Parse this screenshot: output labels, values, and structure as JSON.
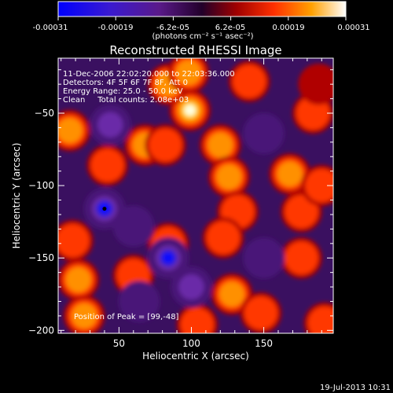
{
  "colorbar": {
    "tick_labels": [
      "-0.00031",
      "-0.00019",
      "-6.2e-05",
      "6.2e-05",
      "0.00019",
      "0.00031"
    ],
    "unit_label": "(photons cm⁻² s⁻¹ asec⁻²)",
    "range": [
      -0.00031,
      0.00031
    ]
  },
  "chart_data": {
    "type": "heatmap",
    "title": "Reconstructed RHESSI Image",
    "xlabel": "Heliocentric X (arcsec)",
    "ylabel": "Heliocentric Y (arcsec)",
    "xlim": [
      8,
      198
    ],
    "ylim": [
      -202,
      -12
    ],
    "x_ticks": [
      50,
      100,
      150
    ],
    "x_tick_labels": [
      "50",
      "100",
      "150"
    ],
    "y_ticks": [
      -50,
      -100,
      -150,
      -200
    ],
    "y_tick_labels": [
      "−50",
      "−100",
      "−150",
      "−200"
    ],
    "annotations": [
      "11-Dec-2006 22:02:20.000 to 22:03:36.000",
      "Detectors: 4F 5F 6F 7F 8F, Att 0",
      "Energy Range: 25.0 - 50.0 keV",
      "Clean     Total counts: 2.08e+03"
    ],
    "peak_label": "Position of Peak = [99,-48]",
    "peak_position": [
      99,
      -48
    ],
    "colormap": "rainbow-thermal",
    "sources": [
      {
        "x": 99,
        "y": -48,
        "value": 0.00031
      },
      {
        "x": 84,
        "y": -30,
        "value": 0.00022
      },
      {
        "x": 98,
        "y": -22,
        "value": 0.0002
      },
      {
        "x": 16,
        "y": -62,
        "value": 0.0002
      },
      {
        "x": 68,
        "y": -72,
        "value": 0.00018
      },
      {
        "x": 82,
        "y": -72,
        "value": 0.00016
      },
      {
        "x": 42,
        "y": -86,
        "value": 0.00015
      },
      {
        "x": 140,
        "y": -28,
        "value": 0.00014
      },
      {
        "x": 120,
        "y": -72,
        "value": 0.00019
      },
      {
        "x": 126,
        "y": -94,
        "value": 0.00018
      },
      {
        "x": 132,
        "y": -118,
        "value": 0.00016
      },
      {
        "x": 122,
        "y": -136,
        "value": 0.00012
      },
      {
        "x": 168,
        "y": -92,
        "value": 0.00018
      },
      {
        "x": 176,
        "y": -118,
        "value": 0.00017
      },
      {
        "x": 190,
        "y": -100,
        "value": 0.00014
      },
      {
        "x": 184,
        "y": -50,
        "value": 0.00012
      },
      {
        "x": 188,
        "y": -30,
        "value": 0.0001
      },
      {
        "x": 18,
        "y": -138,
        "value": 0.00017
      },
      {
        "x": 22,
        "y": -165,
        "value": 0.0002
      },
      {
        "x": 26,
        "y": -190,
        "value": 0.00018
      },
      {
        "x": 60,
        "y": -162,
        "value": 0.00017
      },
      {
        "x": 84,
        "y": -140,
        "value": 0.00014
      },
      {
        "x": 128,
        "y": -175,
        "value": 0.00018
      },
      {
        "x": 148,
        "y": -188,
        "value": 0.00017
      },
      {
        "x": 176,
        "y": -150,
        "value": 0.00014
      },
      {
        "x": 192,
        "y": -195,
        "value": 0.00016
      },
      {
        "x": 104,
        "y": -196,
        "value": 0.00012
      },
      {
        "x": 40,
        "y": -116,
        "value": -0.0003
      },
      {
        "x": 84,
        "y": -150,
        "value": -0.00028
      },
      {
        "x": 44,
        "y": -58,
        "value": -0.0002
      },
      {
        "x": 100,
        "y": -170,
        "value": -0.00018
      },
      {
        "x": 64,
        "y": -180,
        "value": -0.00015
      },
      {
        "x": 150,
        "y": -64,
        "value": -0.00012
      },
      {
        "x": 150,
        "y": -150,
        "value": -0.00012
      },
      {
        "x": 60,
        "y": -128,
        "value": -0.0001
      }
    ]
  },
  "footer": {
    "timestamp": "19-Jul-2013 10:31"
  }
}
